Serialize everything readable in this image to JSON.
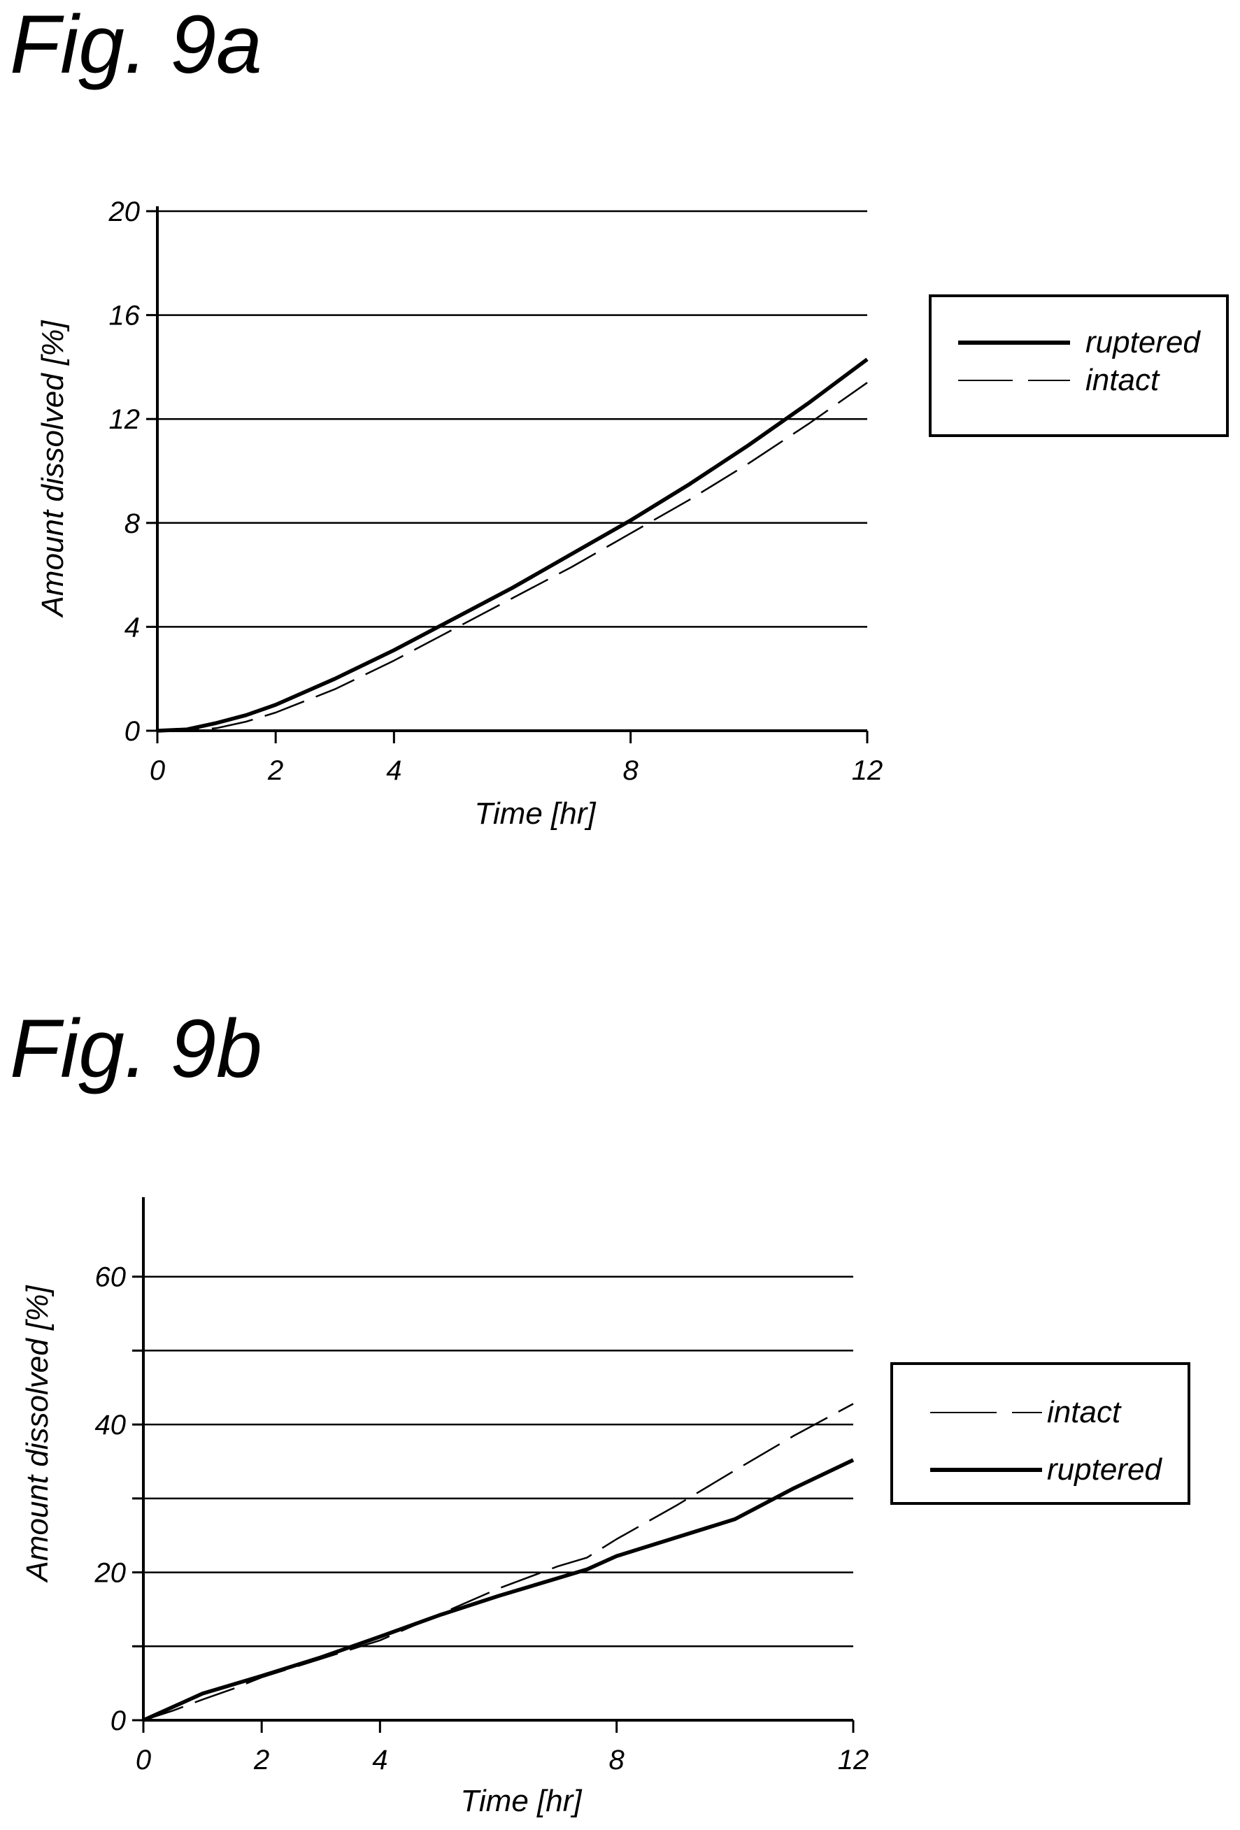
{
  "figures": [
    {
      "title": "Fig. 9a"
    },
    {
      "title": "Fig. 9b"
    }
  ],
  "chart_data": [
    {
      "type": "line",
      "title": "Fig. 9a",
      "xlabel": "Time [hr]",
      "ylabel": "Amount dissolved [%]",
      "xlim": [
        0,
        12
      ],
      "ylim": [
        0,
        20
      ],
      "xticks": [
        "0",
        "2",
        "4",
        "8",
        "12"
      ],
      "yticks": [
        "0",
        "4",
        "8",
        "12",
        "16",
        "20"
      ],
      "grid": "horizontal",
      "legend_position": "right",
      "series": [
        {
          "name": "ruptered",
          "style": "solid-thick",
          "x": [
            0,
            0.5,
            1,
            1.5,
            2,
            3,
            4,
            5,
            6,
            7,
            8,
            9,
            10,
            11,
            12
          ],
          "y": [
            0,
            0.05,
            0.3,
            0.6,
            1.0,
            2.0,
            3.1,
            4.3,
            5.5,
            6.8,
            8.1,
            9.5,
            11.0,
            12.6,
            14.3
          ]
        },
        {
          "name": "intact",
          "style": "dashed-thin",
          "x": [
            0,
            0.5,
            1,
            1.5,
            2,
            3,
            4,
            5,
            6,
            7,
            8,
            9,
            10,
            11,
            12
          ],
          "y": [
            0,
            0.0,
            0.1,
            0.35,
            0.7,
            1.6,
            2.7,
            3.9,
            5.1,
            6.3,
            7.6,
            8.9,
            10.3,
            11.8,
            13.4
          ]
        }
      ]
    },
    {
      "type": "line",
      "title": "Fig. 9b",
      "xlabel": "Time [hr]",
      "ylabel": "Amount dissolved [%]",
      "xlim": [
        0,
        12
      ],
      "ylim": [
        0,
        70
      ],
      "xticks": [
        "0",
        "2",
        "4",
        "8",
        "12"
      ],
      "yticks": [
        "0",
        "20",
        "40",
        "60"
      ],
      "gridlines": [
        10,
        20,
        30,
        40,
        50,
        60
      ],
      "grid": "horizontal",
      "legend_position": "right",
      "series": [
        {
          "name": "intact",
          "style": "dashed-thin",
          "x": [
            0,
            0.5,
            1,
            1.5,
            2,
            3,
            4,
            5,
            6,
            7,
            7.5,
            8,
            9,
            10,
            11,
            12
          ],
          "y": [
            0,
            1.3,
            2.8,
            4.2,
            5.8,
            8.3,
            10.8,
            14.3,
            17.8,
            20.8,
            22.0,
            24.5,
            29.0,
            33.8,
            38.5,
            42.8
          ]
        },
        {
          "name": "ruptered",
          "style": "solid-thick",
          "x": [
            0,
            0.5,
            1,
            1.5,
            2,
            3,
            4,
            5,
            6,
            7,
            7.5,
            8,
            9,
            10,
            11,
            12
          ],
          "y": [
            0,
            1.8,
            3.6,
            4.8,
            6.0,
            8.5,
            11.3,
            14.2,
            16.8,
            19.2,
            20.4,
            22.2,
            24.7,
            27.2,
            31.4,
            35.2
          ]
        }
      ]
    }
  ]
}
